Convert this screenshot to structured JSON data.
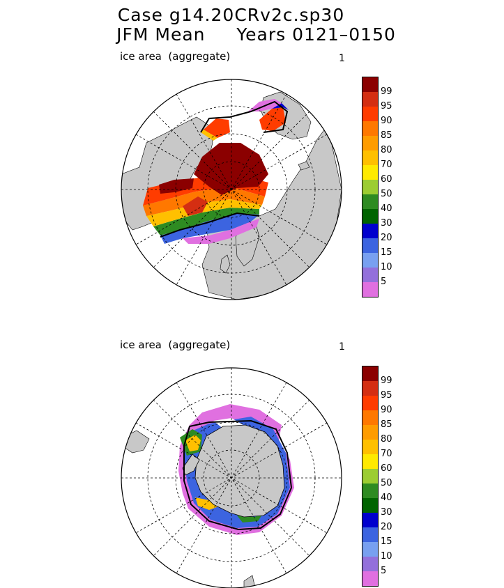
{
  "header": {
    "title_line1": "Case g14.20CRv2c.sp30",
    "title_line2": "JFM Mean     Years 0121–0150"
  },
  "panels": [
    {
      "label": "ice area  (aggregate)",
      "number": "1",
      "hemisphere": "north"
    },
    {
      "label": "ice area  (aggregate)",
      "number": "1",
      "hemisphere": "south"
    }
  ],
  "colorbar": {
    "levels": [
      "99",
      "95",
      "90",
      "85",
      "80",
      "70",
      "60",
      "50",
      "40",
      "30",
      "20",
      "15",
      "10",
      "5"
    ],
    "colors": [
      "#8b0000",
      "#d42e12",
      "#ff3c00",
      "#ff7800",
      "#ff9c00",
      "#ffc000",
      "#ffea00",
      "#9ccd32",
      "#2e8b22",
      "#006400",
      "#0000cd",
      "#3c64e0",
      "#78a0f0",
      "#9370db",
      "#e070e0"
    ]
  },
  "map_colors": {
    "land": "#c8c8c8",
    "ocean": "#ffffff",
    "outline": "#000000"
  }
}
